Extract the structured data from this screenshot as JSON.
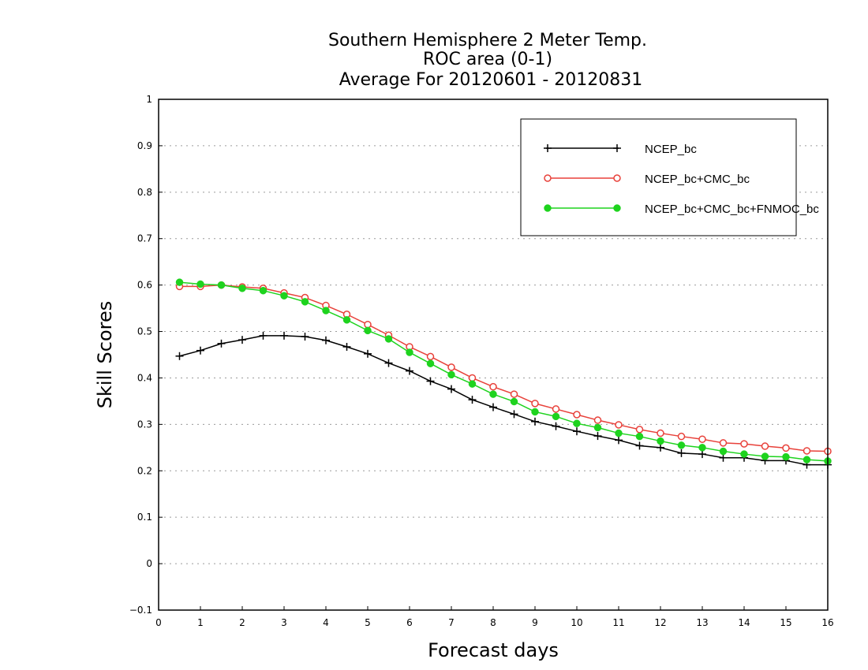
{
  "chart_data": {
    "type": "line",
    "title_lines": [
      "Southern Hemisphere 2 Meter Temp.",
      "ROC area (0-1)",
      "Average For 20120601 - 20120831"
    ],
    "xlabel": "Forecast days",
    "ylabel": "Skill Scores",
    "xlim": [
      0,
      16
    ],
    "ylim": [
      -0.1,
      1
    ],
    "xticks": [
      "0",
      "1",
      "2",
      "3",
      "4",
      "5",
      "6",
      "7",
      "8",
      "9",
      "10",
      "11",
      "12",
      "13",
      "14",
      "15",
      "16"
    ],
    "yticks": [
      "−0.1",
      "0",
      "0.1",
      "0.2",
      "0.3",
      "0.4",
      "0.5",
      "0.6",
      "0.7",
      "0.8",
      "0.9",
      "1"
    ],
    "grid": true,
    "legend_position": "top-right",
    "x": [
      0.5,
      1,
      1.5,
      2,
      2.5,
      3,
      3.5,
      4,
      4.5,
      5,
      5.5,
      6,
      6.5,
      7,
      7.5,
      8,
      8.5,
      9,
      9.5,
      10,
      10.5,
      11,
      11.5,
      12,
      12.5,
      13,
      13.5,
      14,
      14.5,
      15,
      15.5,
      16
    ],
    "series": [
      {
        "name": "NCEP_bc",
        "color": "#000000",
        "marker": "plus",
        "values": [
          0.447,
          0.459,
          0.474,
          0.482,
          0.491,
          0.491,
          0.489,
          0.481,
          0.467,
          0.452,
          0.432,
          0.415,
          0.393,
          0.376,
          0.353,
          0.337,
          0.322,
          0.306,
          0.296,
          0.285,
          0.275,
          0.266,
          0.254,
          0.25,
          0.238,
          0.236,
          0.228,
          0.228,
          0.222,
          0.222,
          0.213,
          0.213
        ]
      },
      {
        "name": "NCEP_bc+CMC_bc",
        "color": "#e8413a",
        "marker": "open-circle",
        "values": [
          0.597,
          0.597,
          0.6,
          0.596,
          0.593,
          0.583,
          0.573,
          0.556,
          0.537,
          0.515,
          0.492,
          0.467,
          0.446,
          0.423,
          0.4,
          0.381,
          0.365,
          0.345,
          0.333,
          0.321,
          0.309,
          0.299,
          0.289,
          0.281,
          0.274,
          0.268,
          0.26,
          0.258,
          0.253,
          0.249,
          0.243,
          0.242
        ]
      },
      {
        "name": "NCEP_bc+CMC_bc+FNMOC_bc",
        "color": "#1ed31e",
        "marker": "filled-circle",
        "values": [
          0.606,
          0.602,
          0.6,
          0.593,
          0.588,
          0.577,
          0.564,
          0.545,
          0.525,
          0.502,
          0.484,
          0.455,
          0.431,
          0.407,
          0.387,
          0.365,
          0.349,
          0.327,
          0.317,
          0.302,
          0.293,
          0.281,
          0.274,
          0.264,
          0.255,
          0.25,
          0.242,
          0.236,
          0.231,
          0.23,
          0.224,
          0.221
        ]
      }
    ]
  }
}
